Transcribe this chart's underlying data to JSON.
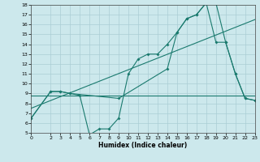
{
  "xlabel": "Humidex (Indice chaleur)",
  "bg_color": "#cce8ec",
  "grid_color": "#aacdd4",
  "line_color": "#1a7a6e",
  "xlim": [
    0,
    23
  ],
  "ylim": [
    5,
    18
  ],
  "xticks": [
    0,
    2,
    3,
    4,
    5,
    6,
    7,
    8,
    9,
    10,
    11,
    12,
    13,
    14,
    15,
    16,
    17,
    18,
    19,
    20,
    21,
    22,
    23
  ],
  "yticks": [
    5,
    6,
    7,
    8,
    9,
    10,
    11,
    12,
    13,
    14,
    15,
    16,
    17,
    18
  ],
  "series1_x": [
    0,
    2,
    3,
    4,
    5,
    6,
    7,
    8,
    9,
    10,
    11,
    12,
    13,
    14,
    15,
    16,
    17,
    18,
    19,
    20,
    21,
    22,
    23
  ],
  "series1_y": [
    6.5,
    9.2,
    9.2,
    9.0,
    8.8,
    4.8,
    5.4,
    5.4,
    6.5,
    11.0,
    12.5,
    13.0,
    13.0,
    14.0,
    15.2,
    16.6,
    17.0,
    18.2,
    18.2,
    14.2,
    11.0,
    8.5,
    8.3
  ],
  "series2_x": [
    0,
    2,
    3,
    4,
    9,
    14,
    15,
    16,
    17,
    18,
    19,
    20,
    21,
    22,
    23
  ],
  "series2_y": [
    6.5,
    9.2,
    9.2,
    9.0,
    8.5,
    11.5,
    15.2,
    16.6,
    17.0,
    18.2,
    14.2,
    14.2,
    11.0,
    8.5,
    8.3
  ],
  "series3_x": [
    0,
    23
  ],
  "series3_y": [
    7.5,
    16.5
  ],
  "series4_x": [
    0,
    23
  ],
  "series4_y": [
    8.8,
    8.8
  ]
}
